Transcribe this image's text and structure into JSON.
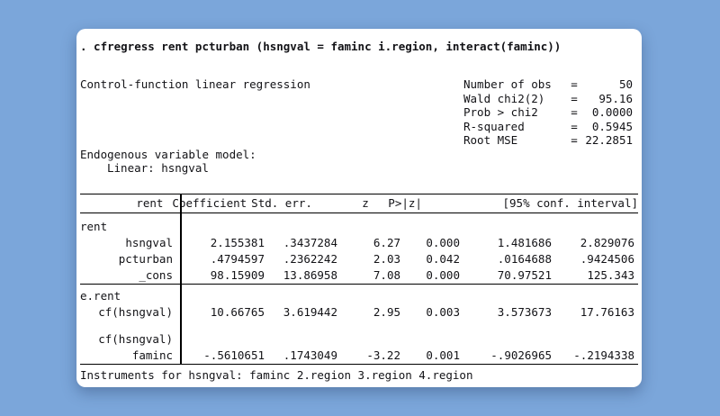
{
  "colors": {
    "background": "#7ba6da",
    "card": "#ffffff",
    "text": "#121216",
    "rule": "#000000"
  },
  "command": ". cfregress rent pcturban (hsngval = faminc i.region, interact(faminc))",
  "title": "Control-function linear regression",
  "stats": [
    {
      "label": "Number of obs",
      "eq": "=",
      "value": "50"
    },
    {
      "label": "Wald chi2(2)",
      "eq": "=",
      "value": "95.16"
    },
    {
      "label": "Prob > chi2",
      "eq": "=",
      "value": "0.0000"
    },
    {
      "label": "R-squared",
      "eq": "=",
      "value": "0.5945"
    },
    {
      "label": "Root MSE",
      "eq": "=",
      "value": "22.2851"
    }
  ],
  "endogenous": {
    "heading": "Endogenous variable model:",
    "detail": "Linear: hsngval"
  },
  "table": {
    "header": {
      "depvar": "rent",
      "coef": "Coefficient",
      "stderr": "Std. err.",
      "z": "z",
      "p": "P>|z|",
      "ci": "[95% conf. interval]"
    },
    "rows": [
      {
        "kind": "group",
        "name": "rent"
      },
      {
        "kind": "data",
        "name": "hsngval",
        "coef": "2.155381",
        "stderr": ".3437284",
        "z": "6.27",
        "p": "0.000",
        "ci_lo": "1.481686",
        "ci_hi": "2.829076"
      },
      {
        "kind": "data",
        "name": "pcturban",
        "coef": ".4794597",
        "stderr": ".2362242",
        "z": "2.03",
        "p": "0.042",
        "ci_lo": ".0164688",
        "ci_hi": ".9424506"
      },
      {
        "kind": "data",
        "name": "_cons",
        "coef": "98.15909",
        "stderr": "13.86958",
        "z": "7.08",
        "p": "0.000",
        "ci_lo": "70.97521",
        "ci_hi": "125.343"
      },
      {
        "kind": "group",
        "name": "e.rent"
      },
      {
        "kind": "data",
        "name": "cf(hsngval)",
        "coef": "10.66765",
        "stderr": "3.619442",
        "z": "2.95",
        "p": "0.003",
        "ci_lo": "3.573673",
        "ci_hi": "17.76163"
      },
      {
        "kind": "group",
        "name": "cf(hsngval)"
      },
      {
        "kind": "data",
        "name": "faminc",
        "coef": "-.5610651",
        "stderr": ".1743049",
        "z": "-3.22",
        "p": "0.001",
        "ci_lo": "-.9026965",
        "ci_hi": "-.2194338"
      }
    ]
  },
  "footer": "Instruments for hsngval: faminc 2.region 3.region 4.region"
}
